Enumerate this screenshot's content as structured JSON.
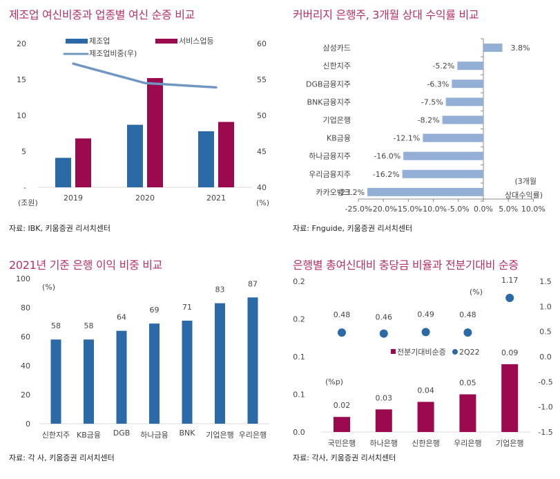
{
  "colors": {
    "title": "#b5306b",
    "blue": "#2b6aa6",
    "maroon": "#9b0a4e",
    "line": "#6f97c2",
    "lightbar": "#93afd6",
    "axis": "#d9d9d9"
  },
  "chart_data": [
    {
      "id": "chart1",
      "type": "bar",
      "title": "제조업 여신비중과 업종별 여신 순증 비교",
      "categories": [
        "2019",
        "2020",
        "2021"
      ],
      "series": [
        {
          "name": "제조업",
          "axis": "left",
          "type": "bar",
          "values": [
            4.1,
            8.7,
            7.8
          ]
        },
        {
          "name": "서비스업등",
          "axis": "left",
          "type": "bar",
          "values": [
            6.8,
            15.2,
            9.1
          ]
        },
        {
          "name": "제조업비중(우)",
          "axis": "right",
          "type": "line",
          "values": [
            57.2,
            54.5,
            53.9
          ]
        }
      ],
      "left_axis": {
        "ylim": [
          0,
          20
        ],
        "ticks": [
          "-",
          "5",
          "10",
          "15",
          "20"
        ],
        "tick_values": [
          0,
          5,
          10,
          15,
          20
        ],
        "unit": "(조원)"
      },
      "right_axis": {
        "ylim": [
          40,
          60
        ],
        "ticks": [
          "40",
          "45",
          "50",
          "55",
          "60"
        ],
        "tick_values": [
          40,
          45,
          50,
          55,
          60
        ],
        "unit": "(%)"
      },
      "legend": "top",
      "source": "자료: IBK, 키움증권 리서치센터"
    },
    {
      "id": "chart2",
      "type": "bar",
      "orientation": "horizontal",
      "title": "커버리지 은행주, 3개월 상대 수익률 비교",
      "categories": [
        "삼성카드",
        "신한지주",
        "DGB금융지주",
        "BNK금융지주",
        "기업은행",
        "KB금융",
        "하나금융지주",
        "우리금융지주",
        "카카오뱅크"
      ],
      "values": [
        3.8,
        -5.2,
        -6.3,
        -7.5,
        -8.2,
        -12.1,
        -16.0,
        -16.2,
        -23.2
      ],
      "data_labels": [
        "3.8%",
        "-5.2%",
        "-6.3%",
        "-7.5%",
        "-8.2%",
        "-12.1%",
        "-16.0%",
        "-16.2%",
        "-23.2%"
      ],
      "xlim": [
        -25,
        10
      ],
      "x_ticks": [
        "-25.0%",
        "-20.0%",
        "-15.0%",
        "-10.0%",
        "-5.0%",
        "0.0%",
        "5.0%",
        "10.0%"
      ],
      "x_tick_values": [
        -25,
        -20,
        -15,
        -10,
        -5,
        0,
        5,
        10
      ],
      "xlabel_line1": "(3개월",
      "xlabel_line2": "상대수익률)",
      "source": "자료: Fnguide, 키움증권 리서치센터"
    },
    {
      "id": "chart3",
      "type": "bar",
      "title": "2021년 기준 은행 이익 비중 비교",
      "categories": [
        "신한지주",
        "KB금융",
        "DGB",
        "하나금융",
        "BNK",
        "기업은행",
        "우리은행"
      ],
      "values": [
        58,
        58,
        64,
        69,
        71,
        83,
        87
      ],
      "data_labels": [
        "58",
        "58",
        "64",
        "69",
        "71",
        "83",
        "87"
      ],
      "ylim": [
        0,
        100
      ],
      "y_ticks": [
        "0",
        "20",
        "40",
        "60",
        "80",
        "100"
      ],
      "y_tick_values": [
        0,
        20,
        40,
        60,
        80,
        100
      ],
      "ylabel": "(%)",
      "source": "자료: 각 사, 키움증권 리서치센터"
    },
    {
      "id": "chart4",
      "type": "bar",
      "title": "은행별 총여신대비 충당금 비율과 전분기대비 순증",
      "categories": [
        "국민은행",
        "하나은행",
        "신한은행",
        "우리은행",
        "기업은행"
      ],
      "series": [
        {
          "name": "전분기대비순증",
          "axis": "left",
          "type": "bar",
          "values": [
            0.02,
            0.03,
            0.04,
            0.05,
            0.09
          ],
          "data_labels": [
            "0.02",
            "0.03",
            "0.04",
            "0.05",
            "0.09"
          ]
        },
        {
          "name": "2Q22",
          "axis": "right",
          "type": "scatter",
          "values": [
            0.48,
            0.46,
            0.49,
            0.48,
            1.17
          ],
          "data_labels": [
            "0.48",
            "0.46",
            "0.49",
            "0.48",
            "1.17"
          ]
        }
      ],
      "left_axis": {
        "ylim": [
          0,
          0.2
        ],
        "ticks": [
          "0.0",
          "0.1",
          "0.1",
          "0.2",
          "0.2"
        ],
        "tick_values": [
          0,
          0.05,
          0.1,
          0.15,
          0.2
        ],
        "unit": "(%p)"
      },
      "right_axis": {
        "ylim": [
          -1.5,
          1.5
        ],
        "ticks": [
          "-1.5",
          "-1.0",
          "-0.5",
          "0.0",
          "0.5",
          "1.0",
          "1.5"
        ],
        "tick_values": [
          -1.5,
          -1.0,
          -0.5,
          0.0,
          0.5,
          1.0,
          1.5
        ],
        "unit": "(%)"
      },
      "legend": "center",
      "source": "자료: 각사, 키움증권 리서치센터"
    }
  ]
}
